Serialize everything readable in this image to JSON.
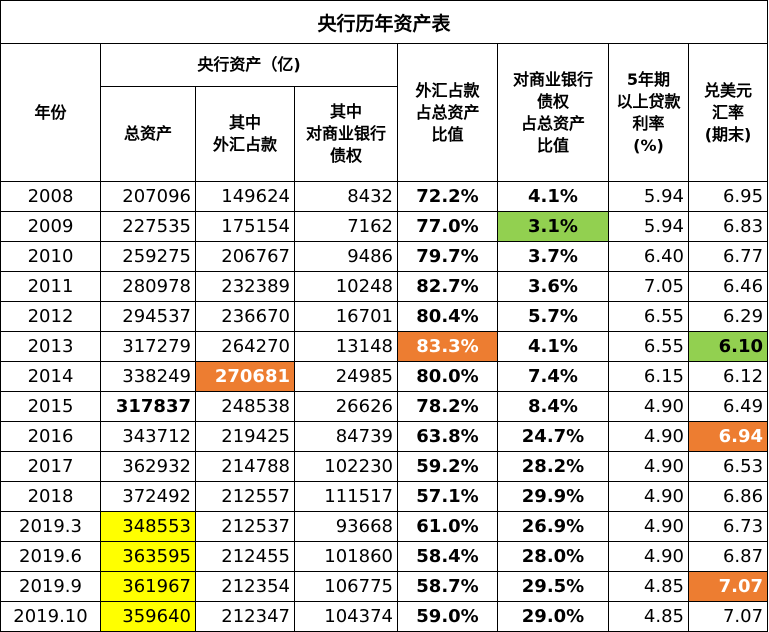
{
  "title": "央行历年资产表",
  "headers": {
    "year": "年份",
    "assets_group": "央行资产（亿)",
    "total_assets": "总资产",
    "fx_line1": "其中",
    "fx_line2": "外汇占款",
    "claims_line1": "其中",
    "claims_line2": "对商业银行",
    "claims_line3": "债权",
    "fx_ratio_line1": "外汇占款",
    "fx_ratio_line2": "占总资产",
    "fx_ratio_line3": "比值",
    "claims_ratio_line1": "对商业银行",
    "claims_ratio_line2": "债权",
    "claims_ratio_line3": "占总资产",
    "claims_ratio_line4": "比值",
    "loan_line1": "5年期",
    "loan_line2": "以上贷款",
    "loan_line3": "利率",
    "loan_line4": "(%)",
    "fx_rate_line1": "兑美元",
    "fx_rate_line2": "汇率",
    "fx_rate_line3": "(期末)"
  },
  "colors": {
    "orange": "#ed7d31",
    "green": "#92d050",
    "yellow": "#ffff00",
    "white_text": "#ffffff"
  },
  "rows": [
    {
      "year": "2008",
      "total": "207096",
      "fx": "149624",
      "claims": "8432",
      "fx_ratio": "72.2%",
      "claims_ratio": "4.1%",
      "loan": "5.94",
      "rate": "6.95"
    },
    {
      "year": "2009",
      "total": "227535",
      "fx": "175154",
      "claims": "7162",
      "fx_ratio": "77.0%",
      "claims_ratio": "3.1%",
      "loan": "5.94",
      "rate": "6.83"
    },
    {
      "year": "2010",
      "total": "259275",
      "fx": "206767",
      "claims": "9486",
      "fx_ratio": "79.7%",
      "claims_ratio": "3.7%",
      "loan": "6.40",
      "rate": "6.77"
    },
    {
      "year": "2011",
      "total": "280978",
      "fx": "232389",
      "claims": "10248",
      "fx_ratio": "82.7%",
      "claims_ratio": "3.6%",
      "loan": "7.05",
      "rate": "6.46"
    },
    {
      "year": "2012",
      "total": "294537",
      "fx": "236670",
      "claims": "16701",
      "fx_ratio": "80.4%",
      "claims_ratio": "5.7%",
      "loan": "6.55",
      "rate": "6.29"
    },
    {
      "year": "2013",
      "total": "317279",
      "fx": "264270",
      "claims": "13148",
      "fx_ratio": "83.3%",
      "claims_ratio": "4.1%",
      "loan": "6.55",
      "rate": "6.10"
    },
    {
      "year": "2014",
      "total": "338249",
      "fx": "270681",
      "claims": "24985",
      "fx_ratio": "80.0%",
      "claims_ratio": "7.4%",
      "loan": "6.15",
      "rate": "6.12"
    },
    {
      "year": "2015",
      "total": "317837",
      "fx": "248538",
      "claims": "26626",
      "fx_ratio": "78.2%",
      "claims_ratio": "8.4%",
      "loan": "4.90",
      "rate": "6.49"
    },
    {
      "year": "2016",
      "total": "343712",
      "fx": "219425",
      "claims": "84739",
      "fx_ratio": "63.8%",
      "claims_ratio": "24.7%",
      "loan": "4.90",
      "rate": "6.94"
    },
    {
      "year": "2017",
      "total": "362932",
      "fx": "214788",
      "claims": "102230",
      "fx_ratio": "59.2%",
      "claims_ratio": "28.2%",
      "loan": "4.90",
      "rate": "6.53"
    },
    {
      "year": "2018",
      "total": "372492",
      "fx": "212557",
      "claims": "111517",
      "fx_ratio": "57.1%",
      "claims_ratio": "29.9%",
      "loan": "4.90",
      "rate": "6.86"
    },
    {
      "year": "2019.3",
      "total": "348553",
      "fx": "212537",
      "claims": "93668",
      "fx_ratio": "61.0%",
      "claims_ratio": "26.9%",
      "loan": "4.90",
      "rate": "6.73"
    },
    {
      "year": "2019.6",
      "total": "363595",
      "fx": "212455",
      "claims": "101860",
      "fx_ratio": "58.4%",
      "claims_ratio": "28.0%",
      "loan": "4.90",
      "rate": "6.87"
    },
    {
      "year": "2019.9",
      "total": "361967",
      "fx": "212354",
      "claims": "106775",
      "fx_ratio": "58.7%",
      "claims_ratio": "29.5%",
      "loan": "4.85",
      "rate": "7.07"
    },
    {
      "year": "2019.10",
      "total": "359640",
      "fx": "212347",
      "claims": "104374",
      "fx_ratio": "59.0%",
      "claims_ratio": "29.0%",
      "loan": "4.85",
      "rate": "7.07"
    }
  ]
}
